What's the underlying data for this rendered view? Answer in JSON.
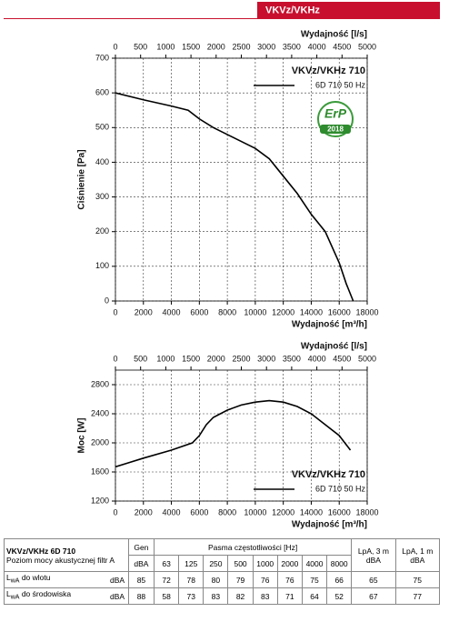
{
  "header": {
    "tag": "VKVz/VKHz"
  },
  "chart_data": [
    {
      "type": "line",
      "x_label": "Wydajność [m³/h]",
      "x2_label": "Wydajność [l/s]",
      "y_label": "Ciśnienie [Pa]",
      "legend_title": "VKVz/VKHz 710",
      "legend": "top-right",
      "grid": true,
      "annotations": [
        "ErP",
        "2018"
      ],
      "xlim": [
        0,
        18000
      ],
      "xticks": [
        0,
        2000,
        4000,
        6000,
        8000,
        10000,
        12000,
        14000,
        16000,
        18000
      ],
      "x2lim": [
        0,
        5000
      ],
      "x2ticks": [
        0,
        500,
        1000,
        1500,
        2000,
        2500,
        3000,
        3500,
        4000,
        4500,
        5000
      ],
      "ylim": [
        0,
        700
      ],
      "yticks": [
        0,
        100,
        200,
        300,
        400,
        500,
        600,
        700
      ],
      "series": [
        {
          "name": "6D 710 50 Hz",
          "color": "#000000",
          "x": [
            0,
            2000,
            4000,
            5200,
            6000,
            7000,
            8000,
            9000,
            10000,
            11000,
            12000,
            13000,
            14000,
            15000,
            16000,
            16500,
            17000
          ],
          "values": [
            600,
            580,
            562,
            550,
            525,
            500,
            480,
            460,
            440,
            410,
            360,
            310,
            250,
            200,
            110,
            50,
            0
          ]
        }
      ]
    },
    {
      "type": "line",
      "x_label": "Wydajność [m³/h]",
      "x2_label": "Wydajność [l/s]",
      "y_label": "Moc [W]",
      "legend_title": "VKVz/VKHz 710",
      "legend": "bottom-right",
      "grid": true,
      "xlim": [
        0,
        18000
      ],
      "xticks": [
        0,
        2000,
        4000,
        6000,
        8000,
        10000,
        12000,
        14000,
        16000,
        18000
      ],
      "x2lim": [
        0,
        5000
      ],
      "x2ticks": [
        0,
        500,
        1000,
        1500,
        2000,
        2500,
        3000,
        3500,
        4000,
        4500,
        5000
      ],
      "ylim": [
        1200,
        3000
      ],
      "yticks": [
        1200,
        1600,
        2000,
        2400,
        2800
      ],
      "series": [
        {
          "name": "6D 710 50 Hz",
          "color": "#000000",
          "x": [
            0,
            2000,
            4000,
            5500,
            6000,
            6500,
            7000,
            8000,
            9000,
            10000,
            11000,
            12000,
            13000,
            14000,
            15000,
            16000,
            16800
          ],
          "values": [
            1670,
            1790,
            1900,
            2000,
            2100,
            2250,
            2350,
            2450,
            2520,
            2560,
            2580,
            2560,
            2500,
            2400,
            2250,
            2100,
            1900
          ]
        }
      ]
    }
  ],
  "table": {
    "title": "VKVz/VKHz  6D 710",
    "subtitle": "Poziom mocy akustycznej filtr A",
    "gen": "Gen",
    "gen_unit": "dBA",
    "bands_label": "Pasma częstotliwości [Hz]",
    "bands": [
      "63",
      "125",
      "250",
      "500",
      "1000",
      "2000",
      "4000",
      "8000"
    ],
    "lpa3": [
      "LpA, 3 m",
      "dBA"
    ],
    "lpa1": [
      "LpA, 1 m",
      "dBA"
    ],
    "rows": [
      {
        "symbol": "L",
        "sub": "wA",
        "text": " do wlotu",
        "unit": "dBA",
        "cells": [
          "85",
          "72",
          "78",
          "80",
          "79",
          "76",
          "76",
          "75",
          "66",
          "65",
          "75"
        ]
      },
      {
        "symbol": "L",
        "sub": "wA",
        "text": " do środowiska",
        "unit": "dBA",
        "cells": [
          "88",
          "58",
          "73",
          "83",
          "82",
          "83",
          "71",
          "64",
          "52",
          "67",
          "77"
        ]
      }
    ]
  }
}
